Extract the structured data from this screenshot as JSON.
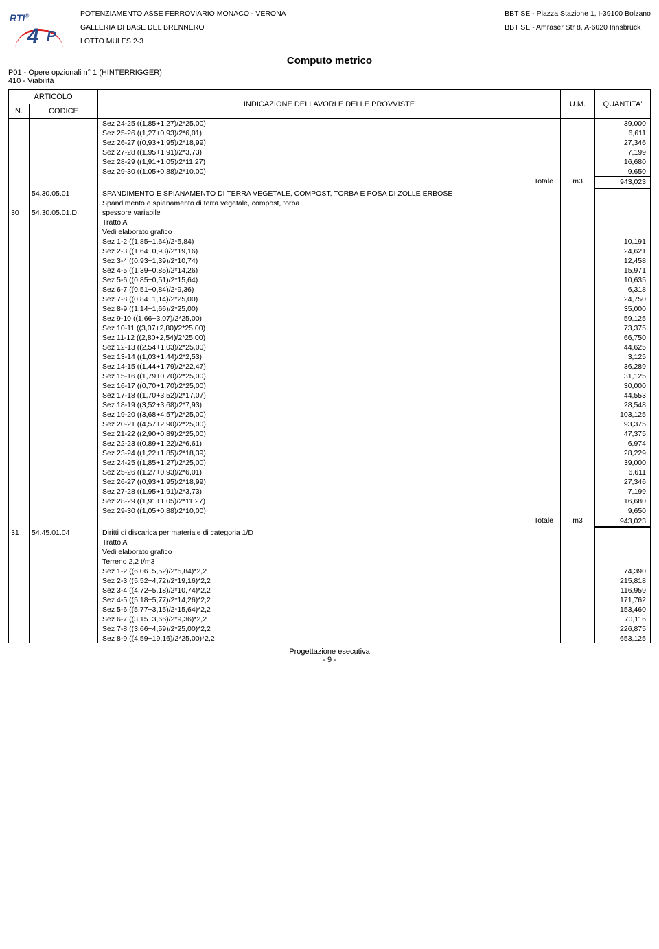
{
  "header": {
    "left1": "POTENZIAMENTO ASSE FERROVIARIO MONACO - VERONA",
    "left2": "GALLERIA DI BASE DEL BRENNERO",
    "left3": "LOTTO MULES 2-3",
    "right1": "BBT SE - Piazza Stazione 1, I-39100 Bolzano",
    "right2": "BBT SE - Amraser Str 8, A-6020 Innsbruck",
    "logo_rti": "RTI",
    "logo_4": "4",
    "logo_p": "P"
  },
  "title": {
    "main": "Computo metrico",
    "sub1": "P01 - Opere opzionali n° 1 (HINTERRIGGER)",
    "sub2": "410 - Viabilità"
  },
  "columns": {
    "articolo": "ARTICOLO",
    "n": "N.",
    "codice": "CODICE",
    "indicazione": "INDICAZIONE DEI LAVORI E DELLE PROVVISTE",
    "um": "U.M.",
    "quantita": "QUANTITA'"
  },
  "totale_label": "Totale",
  "block1": {
    "rows": [
      {
        "d": "Sez 24-25 ((1,85+1,27)/2*25,00)",
        "q": "39,000"
      },
      {
        "d": "Sez 25-26 ((1,27+0,93)/2*6,01)",
        "q": "6,611"
      },
      {
        "d": "Sez 26-27 ((0,93+1,95)/2*18,99)",
        "q": "27,346"
      },
      {
        "d": "Sez 27-28 ((1,95+1,91)/2*3,73)",
        "q": "7,199"
      },
      {
        "d": "Sez 28-29 ((1,91+1,05)/2*11,27)",
        "q": "16,680"
      },
      {
        "d": "Sez 29-30 ((1,05+0,88)/2*10,00)",
        "q": "9,650"
      }
    ],
    "total_um": "m3",
    "total_q": "943,023"
  },
  "item30": {
    "n": "30",
    "cod1": "54.30.05.01",
    "cod2": "54.30.05.01.D",
    "desc1": "SPANDIMENTO E SPIANAMENTO DI TERRA VEGETALE, COMPOST, TORBA E POSA DI ZOLLE ERBOSE",
    "desc2": "Spandimento e spianamento di terra vegetale, compost, torba",
    "desc3": "spessore variabile",
    "tratto": "Tratto A",
    "vedi": "Vedi elaborato grafico",
    "rows": [
      {
        "d": "Sez 1-2 ((1,85+1,64)/2*5,84)",
        "q": "10,191"
      },
      {
        "d": "Sez 2-3 ((1,64+0,93)/2*19,16)",
        "q": "24,621"
      },
      {
        "d": "Sez 3-4 ((0,93+1,39)/2*10,74)",
        "q": "12,458"
      },
      {
        "d": "Sez 4-5 ((1,39+0,85)/2*14,26)",
        "q": "15,971"
      },
      {
        "d": "Sez 5-6 ((0,85+0,51)/2*15,64)",
        "q": "10,635"
      },
      {
        "d": "Sez 6-7 ((0,51+0,84)/2*9,36)",
        "q": "6,318"
      },
      {
        "d": "Sez 7-8 ((0,84+1,14)/2*25,00)",
        "q": "24,750"
      },
      {
        "d": "Sez 8-9 ((1,14+1,66)/2*25,00)",
        "q": "35,000"
      },
      {
        "d": "Sez 9-10 ((1,66+3,07)/2*25,00)",
        "q": "59,125"
      },
      {
        "d": "Sez 10-11 ((3,07+2,80)/2*25,00)",
        "q": "73,375"
      },
      {
        "d": "Sez 11-12 ((2,80+2,54)/2*25,00)",
        "q": "66,750"
      },
      {
        "d": "Sez 12-13 ((2,54+1,03)/2*25,00)",
        "q": "44,625"
      },
      {
        "d": "Sez 13-14 ((1,03+1,44)/2*2,53)",
        "q": "3,125"
      },
      {
        "d": "Sez 14-15 ((1,44+1,79)/2*22,47)",
        "q": "36,289"
      },
      {
        "d": "Sez 15-16 ((1,79+0,70)/2*25,00)",
        "q": "31,125"
      },
      {
        "d": "Sez 16-17 ((0,70+1,70)/2*25,00)",
        "q": "30,000"
      },
      {
        "d": "Sez 17-18 ((1,70+3,52)/2*17,07)",
        "q": "44,553"
      },
      {
        "d": "Sez 18-19 ((3,52+3,68)/2*7,93)",
        "q": "28,548"
      },
      {
        "d": "Sez 19-20 ((3,68+4,57)/2*25,00)",
        "q": "103,125"
      },
      {
        "d": "Sez 20-21 ((4,57+2,90)/2*25,00)",
        "q": "93,375"
      },
      {
        "d": "Sez 21-22 ((2,90+0,89)/2*25,00)",
        "q": "47,375"
      },
      {
        "d": "Sez 22-23 ((0,89+1,22)/2*6,61)",
        "q": "6,974"
      },
      {
        "d": "Sez 23-24 ((1,22+1,85)/2*18,39)",
        "q": "28,229"
      },
      {
        "d": "Sez 24-25 ((1,85+1,27)/2*25,00)",
        "q": "39,000"
      },
      {
        "d": "Sez 25-26 ((1,27+0,93)/2*6,01)",
        "q": "6,611"
      },
      {
        "d": "Sez 26-27 ((0,93+1,95)/2*18,99)",
        "q": "27,346"
      },
      {
        "d": "Sez 27-28 ((1,95+1,91)/2*3,73)",
        "q": "7,199"
      },
      {
        "d": "Sez 28-29 ((1,91+1,05)/2*11,27)",
        "q": "16,680"
      },
      {
        "d": "Sez 29-30 ((1,05+0,88)/2*10,00)",
        "q": "9,650"
      }
    ],
    "total_um": "m3",
    "total_q": "943,023"
  },
  "item31": {
    "n": "31",
    "cod": "54.45.01.04",
    "desc": "Diritti di discarica per materiale di categoria 1/D",
    "tratto": "Tratto A",
    "vedi": "Vedi elaborato grafico",
    "terreno": "Terreno 2,2 t/m3",
    "rows": [
      {
        "d": "Sez 1-2 ((6,06+5,52)/2*5,84)*2,2",
        "q": "74,390"
      },
      {
        "d": "Sez 2-3 ((5,52+4,72)/2*19,16)*2,2",
        "q": "215,818"
      },
      {
        "d": "Sez 3-4 ((4,72+5,18)/2*10,74)*2,2",
        "q": "116,959"
      },
      {
        "d": "Sez 4-5 ((5,18+5,77)/2*14,26)*2,2",
        "q": "171,762"
      },
      {
        "d": "Sez 5-6 ((5,77+3,15)/2*15,64)*2,2",
        "q": "153,460"
      },
      {
        "d": "Sez 6-7 ((3,15+3,66)/2*9,36)*2,2",
        "q": "70,116"
      },
      {
        "d": "Sez 7-8 ((3,66+4,59)/2*25,00)*2,2",
        "q": "226,875"
      },
      {
        "d": "Sez 8-9 ((4,59+19,16)/2*25,00)*2,2",
        "q": "653,125"
      }
    ]
  },
  "footer": {
    "line": "Progettazione esecutiva",
    "page": "- 9 -"
  }
}
